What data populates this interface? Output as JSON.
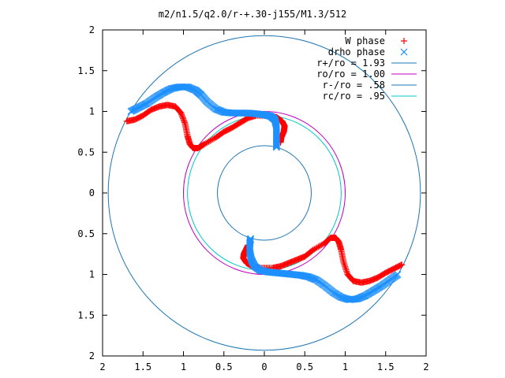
{
  "chart_data": {
    "type": "scatter",
    "title": "m2/n1.5/q2.0/r-+.30-j155/M1.3/512",
    "xlabel": "",
    "ylabel": "",
    "xlim": [
      -2,
      2
    ],
    "ylim": [
      -2,
      2
    ],
    "grid": false,
    "legend_position": "top-right",
    "x_tick_labels": [
      "2",
      "1.5",
      "1",
      "0.5",
      "0",
      "0.5",
      "1",
      "1.5",
      "2"
    ],
    "y_tick_labels": [
      "2",
      "1.5",
      "1",
      "0.5",
      "0",
      "0.5",
      "1",
      "1.5",
      "2"
    ],
    "x_tick_values": [
      -2,
      -1.5,
      -1,
      -0.5,
      0,
      0.5,
      1,
      1.5,
      2
    ],
    "y_tick_values": [
      2,
      1.5,
      1,
      0.5,
      0,
      -0.5,
      -1,
      -1.5,
      -2
    ],
    "series": [
      {
        "name": "W phase",
        "marker": "+",
        "color": "#ff0000",
        "points": [
          [
            -1.7,
            0.88
          ],
          [
            -1.6,
            0.9
          ],
          [
            -1.5,
            0.95
          ],
          [
            -1.4,
            1.02
          ],
          [
            -1.3,
            1.06
          ],
          [
            -1.2,
            1.08
          ],
          [
            -1.1,
            1.06
          ],
          [
            -1.03,
            0.98
          ],
          [
            -0.98,
            0.85
          ],
          [
            -0.95,
            0.7
          ],
          [
            -0.92,
            0.6
          ],
          [
            -0.88,
            0.55
          ],
          [
            -0.82,
            0.55
          ],
          [
            -0.74,
            0.6
          ],
          [
            -0.6,
            0.68
          ],
          [
            -0.5,
            0.75
          ],
          [
            -0.4,
            0.8
          ],
          [
            -0.3,
            0.86
          ],
          [
            -0.2,
            0.92
          ],
          [
            -0.1,
            0.95
          ],
          [
            0.05,
            0.95
          ],
          [
            0.15,
            0.93
          ],
          [
            0.22,
            0.88
          ],
          [
            0.25,
            0.82
          ],
          [
            0.24,
            0.75
          ],
          [
            0.21,
            0.68
          ],
          [
            0.2,
            0.62
          ],
          [
            1.7,
            -0.88
          ],
          [
            1.6,
            -0.93
          ],
          [
            1.5,
            -0.98
          ],
          [
            1.4,
            -1.04
          ],
          [
            1.3,
            -1.08
          ],
          [
            1.2,
            -1.1
          ],
          [
            1.1,
            -1.08
          ],
          [
            1.03,
            -1.0
          ],
          [
            0.98,
            -0.85
          ],
          [
            0.95,
            -0.7
          ],
          [
            0.92,
            -0.6
          ],
          [
            0.88,
            -0.55
          ],
          [
            0.82,
            -0.55
          ],
          [
            0.74,
            -0.62
          ],
          [
            0.6,
            -0.7
          ],
          [
            0.5,
            -0.78
          ],
          [
            0.4,
            -0.82
          ],
          [
            0.3,
            -0.86
          ],
          [
            0.2,
            -0.9
          ],
          [
            0.1,
            -0.92
          ],
          [
            -0.05,
            -0.92
          ],
          [
            -0.15,
            -0.9
          ],
          [
            -0.22,
            -0.86
          ],
          [
            -0.26,
            -0.8
          ],
          [
            -0.25,
            -0.74
          ],
          [
            -0.22,
            -0.68
          ],
          [
            -0.2,
            -0.64
          ]
        ]
      },
      {
        "name": "drho phase",
        "marker": "x",
        "color": "#1e90ff",
        "points": [
          [
            -1.65,
            1.0
          ],
          [
            -1.55,
            1.05
          ],
          [
            -1.45,
            1.1
          ],
          [
            -1.35,
            1.17
          ],
          [
            -1.25,
            1.23
          ],
          [
            -1.15,
            1.28
          ],
          [
            -1.05,
            1.3
          ],
          [
            -0.95,
            1.3
          ],
          [
            -0.85,
            1.26
          ],
          [
            -0.78,
            1.2
          ],
          [
            -0.7,
            1.11
          ],
          [
            -0.6,
            1.03
          ],
          [
            -0.5,
            0.99
          ],
          [
            -0.4,
            0.98
          ],
          [
            -0.3,
            0.98
          ],
          [
            -0.2,
            0.98
          ],
          [
            -0.1,
            0.97
          ],
          [
            0.0,
            0.96
          ],
          [
            0.08,
            0.94
          ],
          [
            0.13,
            0.9
          ],
          [
            0.15,
            0.82
          ],
          [
            0.15,
            0.72
          ],
          [
            0.15,
            0.62
          ],
          [
            0.15,
            0.56
          ],
          [
            1.65,
            -1.0
          ],
          [
            1.55,
            -1.07
          ],
          [
            1.45,
            -1.14
          ],
          [
            1.35,
            -1.2
          ],
          [
            1.25,
            -1.26
          ],
          [
            1.15,
            -1.3
          ],
          [
            1.05,
            -1.31
          ],
          [
            0.95,
            -1.28
          ],
          [
            0.85,
            -1.22
          ],
          [
            0.75,
            -1.14
          ],
          [
            0.65,
            -1.07
          ],
          [
            0.55,
            -1.03
          ],
          [
            0.45,
            -1.01
          ],
          [
            0.35,
            -1.0
          ],
          [
            0.25,
            -0.99
          ],
          [
            0.15,
            -0.98
          ],
          [
            0.05,
            -0.97
          ],
          [
            -0.05,
            -0.95
          ],
          [
            -0.12,
            -0.9
          ],
          [
            -0.16,
            -0.82
          ],
          [
            -0.18,
            -0.72
          ],
          [
            -0.18,
            -0.62
          ],
          [
            -0.17,
            -0.56
          ]
        ]
      },
      {
        "name": "r+/ro = 1.93",
        "type": "circle",
        "radius": 1.93,
        "color": "#1f77b4"
      },
      {
        "name": "ro/ro = 1.00",
        "type": "circle",
        "radius": 1.0,
        "color": "#c000c0"
      },
      {
        "name": "r-/ro = .58",
        "type": "circle",
        "radius": 0.58,
        "color": "#1f77b4"
      },
      {
        "name": "rc/ro = .95",
        "type": "circle",
        "radius": 0.95,
        "color": "#00c8c8"
      }
    ]
  }
}
